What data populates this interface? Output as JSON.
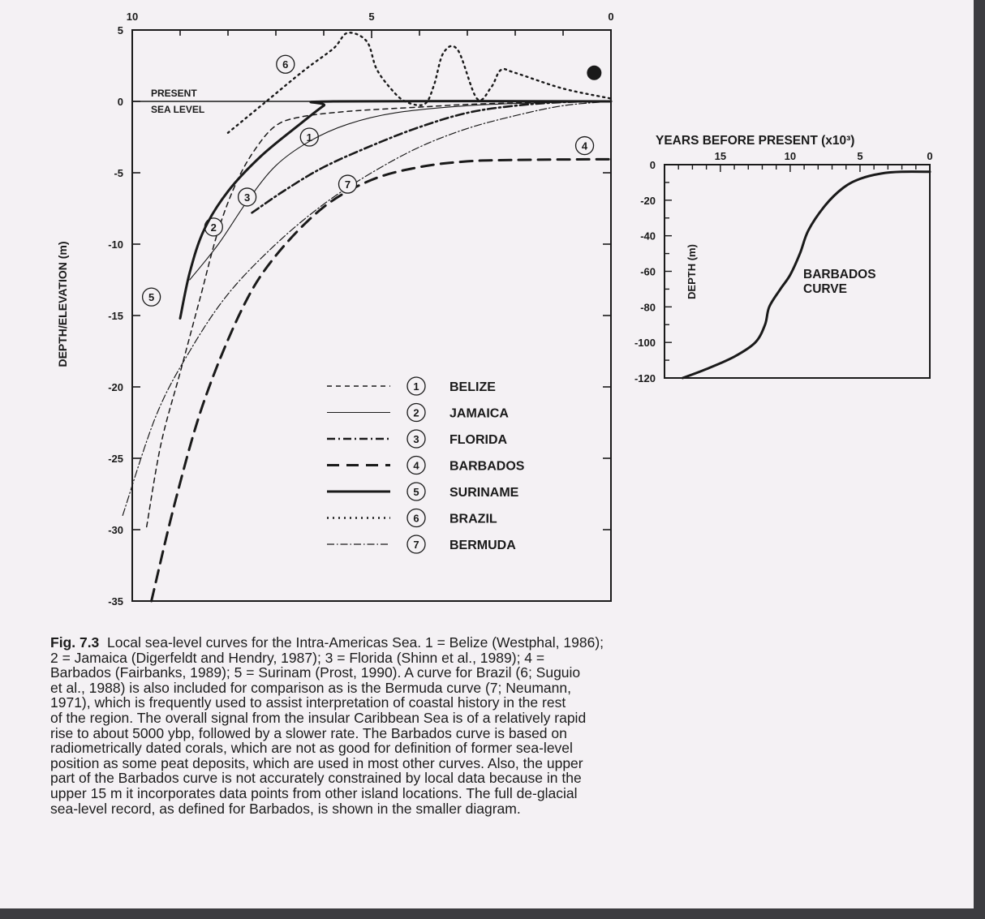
{
  "chart_data": [
    {
      "type": "line",
      "xlim": [
        10,
        0
      ],
      "xticks": [
        "10",
        "5",
        "0"
      ],
      "ylim": [
        -35,
        5
      ],
      "yticks": [
        "5",
        "0",
        "-5",
        "-10",
        "-15",
        "-20",
        "-25",
        "-30",
        "-35"
      ],
      "ylabel": "DEPTH/ELEVATION (m)",
      "sea_level_label": [
        "PRESENT",
        "SEA LEVEL"
      ],
      "legend": [
        {
          "num": "1",
          "name": "BELIZE",
          "dash": "6 5",
          "width": 1.5
        },
        {
          "num": "2",
          "name": "JAMAICA",
          "dash": "",
          "width": 1.1
        },
        {
          "num": "3",
          "name": "FLORIDA",
          "dash": "10 4 2 4",
          "width": 2.6
        },
        {
          "num": "4",
          "name": "BARBADOS",
          "dash": "15 9",
          "width": 3
        },
        {
          "num": "5",
          "name": "SURINAME",
          "dash": "",
          "width": 3
        },
        {
          "num": "6",
          "name": "BRAZIL",
          "dash": "2 5",
          "width": 2.4
        },
        {
          "num": "7",
          "name": "BERMUDA",
          "dash": "9 3 1.5 3",
          "width": 1.2
        }
      ],
      "series": [
        {
          "num": "1",
          "name": "BELIZE",
          "label_at": [
            6.3,
            -2.5
          ],
          "points": [
            [
              9.7,
              -29.8
            ],
            [
              9.4,
              -24
            ],
            [
              9.0,
              -19
            ],
            [
              8.6,
              -14
            ],
            [
              8.2,
              -9
            ],
            [
              7.8,
              -5.5
            ],
            [
              7.4,
              -3.2
            ],
            [
              7.0,
              -1.7
            ],
            [
              6.5,
              -1.1
            ],
            [
              5.5,
              -0.7
            ],
            [
              4.0,
              -0.4
            ],
            [
              2.5,
              -0.15
            ],
            [
              0.0,
              0
            ]
          ]
        },
        {
          "num": "2",
          "name": "JAMAICA",
          "label_at": [
            8.3,
            -8.8
          ],
          "points": [
            [
              8.8,
              -12.5
            ],
            [
              8.2,
              -10
            ],
            [
              7.6,
              -7
            ],
            [
              7.0,
              -4.5
            ],
            [
              6.3,
              -2.8
            ],
            [
              5.5,
              -1.6
            ],
            [
              4.5,
              -0.8
            ],
            [
              3.0,
              -0.3
            ],
            [
              1.5,
              -0.1
            ],
            [
              0.0,
              0
            ]
          ]
        },
        {
          "num": "3",
          "name": "FLORIDA",
          "label_at": [
            7.6,
            -6.7
          ],
          "points": [
            [
              7.5,
              -7.8
            ],
            [
              6.8,
              -6.2
            ],
            [
              6.0,
              -4.6
            ],
            [
              5.0,
              -3.1
            ],
            [
              4.0,
              -1.8
            ],
            [
              3.0,
              -0.8
            ],
            [
              2.0,
              -0.3
            ],
            [
              1.0,
              -0.05
            ],
            [
              0.0,
              0
            ]
          ]
        },
        {
          "num": "4",
          "name": "BARBADOS",
          "label_at": [
            0.55,
            -3.1
          ],
          "points": [
            [
              9.6,
              -35
            ],
            [
              9.1,
              -28
            ],
            [
              8.5,
              -21
            ],
            [
              7.7,
              -14.5
            ],
            [
              7.0,
              -10.8
            ],
            [
              6.0,
              -7.4
            ],
            [
              5.0,
              -5.5
            ],
            [
              4.0,
              -4.6
            ],
            [
              3.0,
              -4.2
            ],
            [
              2.0,
              -4.1
            ],
            [
              0.0,
              -4.05
            ]
          ]
        },
        {
          "num": "5",
          "name": "SURINAME",
          "label_at": [
            9.6,
            -13.7
          ],
          "points": [
            [
              9.0,
              -15.2
            ],
            [
              8.8,
              -12
            ],
            [
              8.5,
              -9
            ],
            [
              8.0,
              -6.3
            ],
            [
              7.3,
              -3.8
            ],
            [
              6.5,
              -1.6
            ],
            [
              6.0,
              -0.3
            ],
            [
              5.8,
              0
            ],
            [
              0.0,
              0
            ]
          ]
        },
        {
          "num": "6",
          "name": "BRAZIL",
          "label_at": [
            6.8,
            2.6
          ],
          "points": [
            [
              8.0,
              -2.2
            ],
            [
              7.2,
              0
            ],
            [
              6.4,
              2.2
            ],
            [
              5.8,
              3.7
            ],
            [
              5.5,
              4.8
            ],
            [
              5.1,
              4.2
            ],
            [
              4.9,
              2.3
            ],
            [
              4.6,
              0.9
            ],
            [
              4.3,
              0
            ],
            [
              3.9,
              -0.2
            ],
            [
              3.7,
              1.1
            ],
            [
              3.5,
              3.4
            ],
            [
              3.2,
              3.6
            ],
            [
              2.8,
              0.2
            ],
            [
              2.5,
              1.0
            ],
            [
              2.3,
              2.2
            ],
            [
              2.0,
              2.0
            ],
            [
              1.0,
              0.9
            ],
            [
              0.0,
              0.2
            ]
          ]
        },
        {
          "num": "7",
          "name": "BERMUDA",
          "label_at": [
            5.5,
            -5.8
          ],
          "points": [
            [
              10.2,
              -29
            ],
            [
              9.5,
              -22
            ],
            [
              8.8,
              -17.5
            ],
            [
              8.0,
              -13.5
            ],
            [
              7.0,
              -10
            ],
            [
              6.0,
              -7.2
            ],
            [
              5.0,
              -5
            ],
            [
              4.0,
              -3.2
            ],
            [
              3.0,
              -1.9
            ],
            [
              2.0,
              -1
            ],
            [
              1.0,
              -0.3
            ],
            [
              0.0,
              0
            ]
          ]
        }
      ],
      "marker_point": [
        0.35,
        2.0
      ]
    },
    {
      "type": "line",
      "title": "YEARS BEFORE PRESENT (x10³)",
      "xticks": [
        "15",
        "10",
        "5",
        "0"
      ],
      "xlim": [
        19,
        0
      ],
      "ylim": [
        0,
        -120
      ],
      "yticks": [
        "0",
        "-20",
        "-40",
        "-60",
        "-80",
        "-100",
        "-120"
      ],
      "ylabel": "DEPTH (m)",
      "curve_label": [
        "BARBADOS",
        "CURVE"
      ],
      "points": [
        [
          17.7,
          -120
        ],
        [
          16,
          -115
        ],
        [
          14,
          -108
        ],
        [
          12.5,
          -100
        ],
        [
          11.8,
          -90
        ],
        [
          11.5,
          -80
        ],
        [
          10.7,
          -70
        ],
        [
          10.0,
          -62
        ],
        [
          9.3,
          -50
        ],
        [
          8.7,
          -37
        ],
        [
          7.5,
          -23
        ],
        [
          6.2,
          -13
        ],
        [
          5.0,
          -8
        ],
        [
          3.5,
          -5
        ],
        [
          2.0,
          -4
        ],
        [
          0.0,
          -4
        ]
      ]
    }
  ],
  "caption": {
    "figure_label": "Fig. 7.3",
    "lines": [
      "Local sea-level curves for the Intra-Americas Sea. 1 = Belize (Westphal, 1986);",
      "2 = Jamaica (Digerfeldt and Hendry, 1987); 3 = Florida (Shinn et al., 1989); 4 =",
      "Barbados (Fairbanks, 1989); 5 = Surinam (Prost, 1990). A curve for Brazil (6; Suguio",
      "et al., 1988) is also included for comparison as is the Bermuda curve (7; Neumann,",
      "1971), which is frequently used to assist interpretation of coastal history in the rest",
      "of the region. The overall signal from the insular Caribbean Sea is of a relatively rapid",
      "rise to about 5000 ybp, followed by a slower rate. The Barbados curve is based on",
      "radiometrically dated corals, which are not as good for definition of former sea-level",
      "position as some peat deposits, which are used in most other curves. Also, the upper",
      "part of the Barbados curve is not accurately constrained by local data because in the",
      "upper 15 m it incorporates data points from other island locations. The full de-glacial",
      "sea-level record, as defined for Barbados, is shown in the smaller diagram."
    ]
  },
  "colors": {
    "ink": "#1a1a1a",
    "paper": "#f4f1f4",
    "background": "#3c3c40"
  }
}
